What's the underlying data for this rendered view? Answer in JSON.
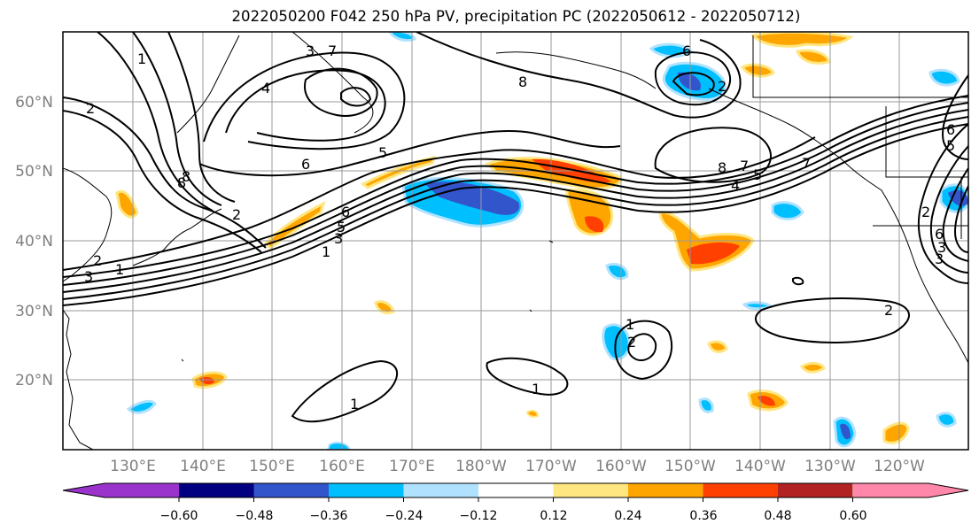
{
  "title": "2022050200 F042 250 hPa PV, precipitation PC (2022050612 - 2022050712)",
  "lat_labels": [
    "60°N",
    "50°N",
    "40°N",
    "30°N",
    "20°N"
  ],
  "lon_labels": [
    "130°E",
    "140°E",
    "150°E",
    "160°E",
    "170°E",
    "180°W",
    "170°W",
    "160°W",
    "150°W",
    "140°W",
    "130°W",
    "120°W"
  ],
  "colorbar": {
    "colors": [
      "#9933cc",
      "#000080",
      "#3355cc",
      "#00bfff",
      "#b0e2ff",
      "#ffffff",
      "#ffe680",
      "#ffa500",
      "#ff4000",
      "#b22222",
      "#ff88aa"
    ],
    "tick_labels": [
      "−0.60",
      "−0.48",
      "−0.36",
      "−0.24",
      "−0.12",
      "0.12",
      "0.24",
      "0.36",
      "0.48",
      "0.60"
    ]
  },
  "contour_labels": [
    "1",
    "2",
    "3",
    "4",
    "5",
    "6",
    "7",
    "8",
    "8",
    "2",
    "3",
    "6",
    "5",
    "8",
    "7",
    "4",
    "5",
    "6",
    "3",
    "1",
    "2",
    "2",
    "1",
    "1",
    "1",
    "6",
    "5",
    "2",
    "1",
    "2",
    "3",
    "6",
    "7",
    "8",
    "2",
    "3"
  ],
  "colors": {
    "grid": "#999999",
    "contour": "#000000",
    "axis_text": "#7f7f7f"
  }
}
